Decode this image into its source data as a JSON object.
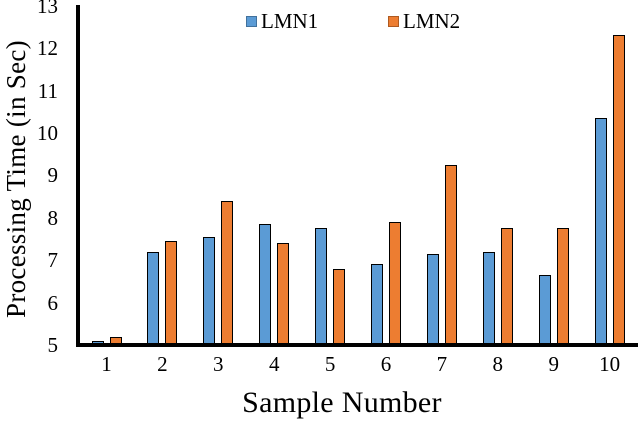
{
  "chart_data": {
    "type": "bar",
    "title": "",
    "xlabel": "Sample Number",
    "ylabel": "Processing Time (in Sec)",
    "categories": [
      "1",
      "2",
      "3",
      "4",
      "5",
      "6",
      "7",
      "8",
      "9",
      "10"
    ],
    "series": [
      {
        "name": "LMN1",
        "color": "#5B9BD5",
        "border_color": "#000000",
        "values": [
          5.1,
          7.2,
          7.55,
          7.85,
          7.75,
          6.9,
          7.15,
          7.2,
          6.65,
          10.35
        ]
      },
      {
        "name": "LMN2",
        "color": "#ED7D31",
        "border_color": "#000000",
        "values": [
          5.2,
          7.45,
          8.4,
          7.4,
          6.8,
          7.9,
          9.25,
          7.75,
          7.75,
          12.3
        ]
      }
    ],
    "ylim": [
      5,
      13
    ],
    "ytick_step": 1,
    "grid": false,
    "legend_position": "top",
    "legend_labels": [
      "LMN1",
      "LMN2"
    ]
  }
}
